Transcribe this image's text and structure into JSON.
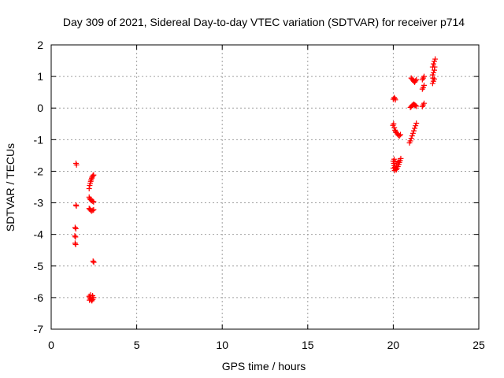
{
  "chart_data": {
    "type": "scatter",
    "title": "Day 309 of 2021, Sidereal Day-to-day VTEC variation (SDTVAR) for receiver p714",
    "xlabel": "GPS time / hours",
    "ylabel": "SDTVAR / TECUs",
    "xlim": [
      0,
      25
    ],
    "ylim": [
      -7,
      2
    ],
    "xticks": [
      0,
      5,
      10,
      15,
      20,
      25
    ],
    "yticks": [
      -7,
      -6,
      -5,
      -4,
      -3,
      -2,
      -1,
      0,
      1,
      2
    ],
    "grid": true,
    "marker_color": "#ff0000",
    "marker": "plus",
    "series": [
      {
        "points": [
          [
            1.45,
            -1.75
          ],
          [
            1.48,
            -1.8
          ],
          [
            1.45,
            -3.07
          ],
          [
            1.47,
            -3.1
          ],
          [
            1.4,
            -3.78
          ],
          [
            1.44,
            -3.82
          ],
          [
            1.38,
            -4.05
          ],
          [
            1.42,
            -4.08
          ],
          [
            1.4,
            -4.28
          ],
          [
            1.43,
            -4.32
          ],
          [
            2.22,
            -2.55
          ],
          [
            2.25,
            -2.45
          ],
          [
            2.28,
            -2.38
          ],
          [
            2.31,
            -2.32
          ],
          [
            2.34,
            -2.27
          ],
          [
            2.37,
            -2.22
          ],
          [
            2.4,
            -2.18
          ],
          [
            2.44,
            -2.14
          ],
          [
            2.48,
            -2.12
          ],
          [
            2.22,
            -2.82
          ],
          [
            2.26,
            -2.87
          ],
          [
            2.3,
            -2.9
          ],
          [
            2.36,
            -2.93
          ],
          [
            2.43,
            -2.95
          ],
          [
            2.48,
            -2.97
          ],
          [
            2.22,
            -3.18
          ],
          [
            2.26,
            -3.2
          ],
          [
            2.3,
            -3.23
          ],
          [
            2.36,
            -3.26
          ],
          [
            2.43,
            -3.24
          ],
          [
            2.48,
            -3.22
          ],
          [
            2.45,
            -4.85
          ],
          [
            2.49,
            -4.88
          ],
          [
            2.22,
            -5.96
          ],
          [
            2.26,
            -6.0
          ],
          [
            2.3,
            -6.04
          ],
          [
            2.34,
            -6.07
          ],
          [
            2.38,
            -6.1
          ],
          [
            2.43,
            -6.06
          ],
          [
            2.48,
            -6.0
          ],
          [
            2.3,
            -5.92
          ],
          [
            2.24,
            -6.08
          ],
          [
            2.42,
            -5.94
          ],
          [
            20.0,
            0.28
          ],
          [
            20.05,
            0.33
          ],
          [
            20.1,
            0.3
          ],
          [
            20.12,
            0.26
          ],
          [
            19.98,
            -0.55
          ],
          [
            20.02,
            -0.5
          ],
          [
            20.06,
            -0.62
          ],
          [
            20.1,
            -0.7
          ],
          [
            20.14,
            -0.74
          ],
          [
            20.18,
            -0.78
          ],
          [
            20.24,
            -0.82
          ],
          [
            20.3,
            -0.86
          ],
          [
            20.36,
            -0.88
          ],
          [
            20.42,
            -0.84
          ],
          [
            20.0,
            -1.68
          ],
          [
            20.03,
            -1.75
          ],
          [
            20.06,
            -1.82
          ],
          [
            20.1,
            -1.88
          ],
          [
            20.14,
            -1.92
          ],
          [
            20.18,
            -1.95
          ],
          [
            20.22,
            -1.9
          ],
          [
            20.27,
            -1.85
          ],
          [
            20.32,
            -1.78
          ],
          [
            20.36,
            -1.72
          ],
          [
            20.4,
            -1.66
          ],
          [
            20.44,
            -1.6
          ],
          [
            20.05,
            -1.62
          ],
          [
            20.12,
            -1.7
          ],
          [
            20.2,
            -1.76
          ],
          [
            20.28,
            -1.68
          ],
          [
            20.0,
            -1.9
          ],
          [
            20.08,
            -1.98
          ],
          [
            20.95,
            -1.1
          ],
          [
            21.0,
            -1.04
          ],
          [
            21.05,
            -0.96
          ],
          [
            21.1,
            -0.88
          ],
          [
            21.15,
            -0.8
          ],
          [
            21.2,
            -0.72
          ],
          [
            21.25,
            -0.64
          ],
          [
            21.3,
            -0.56
          ],
          [
            21.35,
            -0.48
          ],
          [
            21.0,
            0.02
          ],
          [
            21.05,
            0.05
          ],
          [
            21.1,
            0.08
          ],
          [
            21.15,
            0.1
          ],
          [
            21.2,
            0.12
          ],
          [
            21.25,
            0.1
          ],
          [
            21.3,
            0.08
          ],
          [
            21.35,
            0.06
          ],
          [
            21.05,
            0.95
          ],
          [
            21.1,
            0.92
          ],
          [
            21.15,
            0.88
          ],
          [
            21.2,
            0.85
          ],
          [
            21.25,
            0.82
          ],
          [
            21.3,
            0.86
          ],
          [
            21.35,
            0.9
          ],
          [
            21.7,
            0.05
          ],
          [
            21.75,
            0.1
          ],
          [
            21.8,
            0.15
          ],
          [
            21.7,
            0.6
          ],
          [
            21.75,
            0.65
          ],
          [
            21.8,
            0.72
          ],
          [
            21.7,
            0.9
          ],
          [
            21.75,
            0.95
          ],
          [
            21.8,
            1.0
          ],
          [
            22.3,
            0.78
          ],
          [
            22.35,
            0.85
          ],
          [
            22.4,
            0.92
          ],
          [
            22.3,
            1.05
          ],
          [
            22.35,
            1.12
          ],
          [
            22.4,
            1.2
          ],
          [
            22.3,
            1.3
          ],
          [
            22.35,
            1.4
          ],
          [
            22.4,
            1.48
          ],
          [
            22.45,
            1.55
          ],
          [
            22.32,
            0.95
          ],
          [
            22.42,
            1.3
          ]
        ]
      }
    ]
  }
}
